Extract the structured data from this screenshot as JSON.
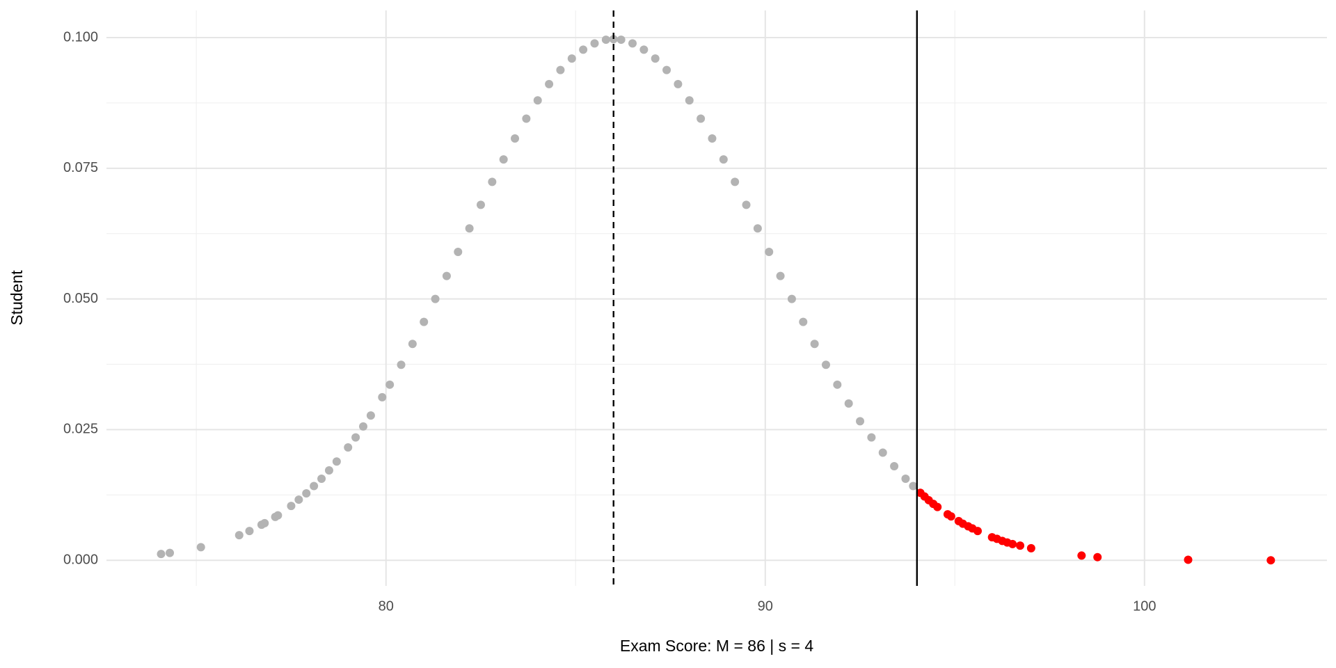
{
  "chart_data": {
    "type": "scatter",
    "x_label": "Exam Score: M = 86 | s = 4",
    "y_label": "Student",
    "xlim": [
      72.63,
      104.81
    ],
    "ylim": [
      -0.0049,
      0.1052
    ],
    "xticks": [
      80,
      90,
      100
    ],
    "yticks": [
      {
        "value": 0,
        "label": "0.000"
      },
      {
        "value": 0.025,
        "label": "0.025"
      },
      {
        "value": 0.05,
        "label": "0.050"
      },
      {
        "value": 0.075,
        "label": "0.075"
      },
      {
        "value": 0.1,
        "label": "0.100"
      }
    ],
    "x_minor_ticks": [
      75,
      85,
      95
    ],
    "y_minor_ticks": [
      0.0125,
      0.0375,
      0.0625,
      0.0875
    ],
    "grid": true,
    "reference_lines": [
      {
        "x": 86,
        "dashed": true
      },
      {
        "x": 94,
        "dashed": false
      }
    ],
    "series": [
      {
        "color": "#b3b3b3",
        "x": [
          74.07,
          74.3,
          75.12,
          76.13,
          76.4,
          76.72,
          76.8,
          77.08,
          77.15,
          77.5,
          77.7,
          77.9,
          78.1,
          78.3,
          78.5,
          78.7,
          79.0,
          79.2,
          79.4,
          79.6,
          79.9,
          80.1,
          80.4,
          80.7,
          81.0,
          81.3,
          81.6,
          81.9,
          82.2,
          82.5,
          82.8,
          83.1,
          83.4,
          83.7,
          84.0,
          84.3,
          84.6,
          84.9,
          85.2,
          85.5,
          85.8,
          86.0,
          86.2,
          86.5,
          86.8,
          87.1,
          87.4,
          87.7,
          88.0,
          88.3,
          88.6,
          88.9,
          89.2,
          89.5,
          89.8,
          90.1,
          90.4,
          90.7,
          91.0,
          91.3,
          91.6,
          91.9,
          92.2,
          92.5,
          92.8,
          93.1,
          93.4,
          93.7,
          93.9
        ],
        "y": [
          0.0012,
          0.0014,
          0.0025,
          0.0048,
          0.0056,
          0.0068,
          0.0071,
          0.0083,
          0.0086,
          0.0104,
          0.0116,
          0.0128,
          0.0142,
          0.0156,
          0.0172,
          0.0189,
          0.0216,
          0.0235,
          0.0256,
          0.0277,
          0.0312,
          0.0336,
          0.0374,
          0.0414,
          0.0456,
          0.05,
          0.0544,
          0.059,
          0.0635,
          0.068,
          0.0724,
          0.0767,
          0.0807,
          0.0845,
          0.088,
          0.0911,
          0.0938,
          0.096,
          0.0977,
          0.0989,
          0.0996,
          0.0997,
          0.0996,
          0.0989,
          0.0977,
          0.096,
          0.0938,
          0.0911,
          0.088,
          0.0845,
          0.0807,
          0.0767,
          0.0724,
          0.068,
          0.0635,
          0.059,
          0.0544,
          0.05,
          0.0456,
          0.0414,
          0.0374,
          0.0336,
          0.03,
          0.0266,
          0.0235,
          0.0206,
          0.018,
          0.0156,
          0.0142
        ]
      },
      {
        "color": "#ff0000",
        "x": [
          94.09,
          94.2,
          94.31,
          94.43,
          94.54,
          94.81,
          94.9,
          95.1,
          95.21,
          95.35,
          95.46,
          95.6,
          95.98,
          96.11,
          96.25,
          96.38,
          96.52,
          96.72,
          97.01,
          98.34,
          98.76,
          101.15,
          103.33
        ],
        "y": [
          0.0129,
          0.0122,
          0.0115,
          0.0108,
          0.0102,
          0.0088,
          0.0084,
          0.0075,
          0.007,
          0.0065,
          0.0061,
          0.0056,
          0.0044,
          0.0041,
          0.0037,
          0.0034,
          0.0031,
          0.0028,
          0.0023,
          0.0009,
          0.0006,
          0.0001,
          0.0
        ]
      }
    ]
  }
}
